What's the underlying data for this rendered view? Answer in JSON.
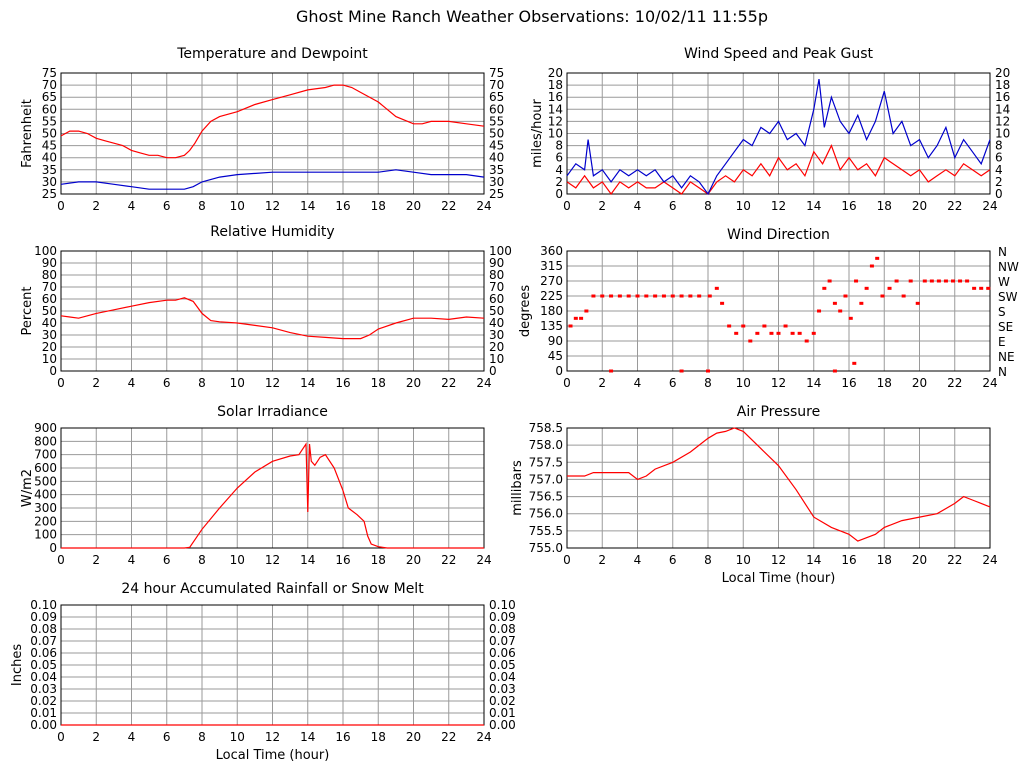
{
  "title": "Ghost Mine Ranch Weather Observations: 10/02/11 11:55p",
  "colors": {
    "primary": "#ff0000",
    "secondary": "#0000cc",
    "grid": "#9a9a9a"
  },
  "chart_data": [
    {
      "id": "temp",
      "type": "line",
      "title": "Temperature and Dewpoint",
      "xlabel": "",
      "ylabel": "Fahrenheit",
      "xlim": [
        0,
        24
      ],
      "ylim": [
        25,
        75
      ],
      "yticks": [
        25,
        30,
        35,
        40,
        45,
        50,
        55,
        60,
        65,
        70,
        75
      ],
      "right_axis": true,
      "series": [
        {
          "color": "red",
          "x": [
            0,
            0.5,
            1,
            1.5,
            2,
            2.5,
            3,
            3.5,
            4,
            4.5,
            5,
            5.5,
            6,
            6.5,
            7,
            7.3,
            7.6,
            8,
            8.5,
            9,
            10,
            11,
            12,
            13,
            14,
            15,
            15.5,
            16,
            16.5,
            17,
            18,
            19,
            20,
            20.5,
            21,
            22,
            23,
            24
          ],
          "y": [
            49,
            51,
            51,
            50,
            48,
            47,
            46,
            45,
            43,
            42,
            41,
            41,
            40,
            40,
            41,
            43,
            46,
            51,
            55,
            57,
            59,
            62,
            64,
            66,
            68,
            69,
            70,
            70,
            69,
            67,
            63,
            57,
            54,
            54,
            55,
            55,
            54,
            53
          ]
        },
        {
          "color": "blue",
          "x": [
            0,
            1,
            2,
            3,
            4,
            5,
            6,
            7,
            7.5,
            8,
            9,
            10,
            12,
            14,
            16,
            18,
            19,
            20,
            21,
            22,
            23,
            24
          ],
          "y": [
            29,
            30,
            30,
            29,
            28,
            27,
            27,
            27,
            28,
            30,
            32,
            33,
            34,
            34,
            34,
            34,
            35,
            34,
            33,
            33,
            33,
            32
          ]
        }
      ]
    },
    {
      "id": "wind",
      "type": "line",
      "title": "Wind Speed and Peak Gust",
      "xlabel": "",
      "ylabel": "miles/hour",
      "xlim": [
        0,
        24
      ],
      "ylim": [
        0,
        20
      ],
      "yticks": [
        0,
        2,
        4,
        6,
        8,
        10,
        12,
        14,
        16,
        18,
        20
      ],
      "right_axis": true,
      "series": [
        {
          "color": "red",
          "x": [
            0,
            0.5,
            1,
            1.5,
            2,
            2.5,
            3,
            3.5,
            4,
            4.5,
            5,
            5.5,
            6,
            6.5,
            7,
            7.5,
            8,
            8.5,
            9,
            9.5,
            10,
            10.5,
            11,
            11.5,
            12,
            12.5,
            13,
            13.5,
            14,
            14.5,
            15,
            15.5,
            16,
            16.5,
            17,
            17.5,
            18,
            18.5,
            19,
            19.5,
            20,
            20.5,
            21,
            21.5,
            22,
            22.5,
            23,
            23.5,
            24
          ],
          "y": [
            2,
            1,
            3,
            1,
            2,
            0,
            2,
            1,
            2,
            1,
            1,
            2,
            1,
            0,
            2,
            1,
            0,
            2,
            3,
            2,
            4,
            3,
            5,
            3,
            6,
            4,
            5,
            3,
            7,
            5,
            8,
            4,
            6,
            4,
            5,
            3,
            6,
            5,
            4,
            3,
            4,
            2,
            3,
            4,
            3,
            5,
            4,
            3,
            4
          ]
        },
        {
          "color": "blue",
          "x": [
            0,
            0.5,
            1,
            1.2,
            1.5,
            2,
            2.5,
            3,
            3.5,
            4,
            4.5,
            5,
            5.5,
            6,
            6.5,
            7,
            7.5,
            8,
            8.5,
            9,
            9.5,
            10,
            10.5,
            11,
            11.5,
            12,
            12.5,
            13,
            13.5,
            14,
            14.3,
            14.6,
            15,
            15.5,
            16,
            16.5,
            17,
            17.5,
            18,
            18.5,
            19,
            19.5,
            20,
            20.5,
            21,
            21.5,
            22,
            22.5,
            23,
            23.5,
            24
          ],
          "y": [
            3,
            5,
            4,
            9,
            3,
            4,
            2,
            4,
            3,
            4,
            3,
            4,
            2,
            3,
            1,
            3,
            2,
            0,
            3,
            5,
            7,
            9,
            8,
            11,
            10,
            12,
            9,
            10,
            8,
            14,
            19,
            11,
            16,
            12,
            10,
            13,
            9,
            12,
            17,
            10,
            12,
            8,
            9,
            6,
            8,
            11,
            6,
            9,
            7,
            5,
            9
          ]
        }
      ]
    },
    {
      "id": "humidity",
      "type": "line",
      "title": "Relative Humidity",
      "xlabel": "",
      "ylabel": "Percent",
      "xlim": [
        0,
        24
      ],
      "ylim": [
        0,
        100
      ],
      "yticks": [
        0,
        10,
        20,
        30,
        40,
        50,
        60,
        70,
        80,
        90,
        100
      ],
      "right_axis": true,
      "series": [
        {
          "color": "red",
          "x": [
            0,
            0.5,
            1,
            1.5,
            2,
            3,
            4,
            5,
            6,
            6.5,
            7,
            7.5,
            8,
            8.5,
            9,
            10,
            11,
            12,
            13,
            14,
            15,
            16,
            17,
            17.5,
            18,
            19,
            20,
            21,
            22,
            23,
            24
          ],
          "y": [
            46,
            45,
            44,
            46,
            48,
            51,
            54,
            57,
            59,
            59,
            61,
            58,
            48,
            42,
            41,
            40,
            38,
            36,
            32,
            29,
            28,
            27,
            27,
            30,
            35,
            40,
            44,
            44,
            43,
            45,
            44
          ]
        }
      ]
    },
    {
      "id": "winddir",
      "type": "scatter",
      "title": "Wind Direction",
      "xlabel": "",
      "ylabel": "degrees",
      "xlim": [
        0,
        24
      ],
      "ylim": [
        0,
        360
      ],
      "yticks": [
        0,
        45,
        90,
        135,
        180,
        225,
        270,
        315,
        360
      ],
      "right_labels": [
        "N",
        "NE",
        "E",
        "SE",
        "S",
        "SW",
        "W",
        "NW",
        "N"
      ],
      "series": [
        {
          "color": "red",
          "x": [
            0.2,
            0.5,
            0.8,
            1.1,
            1.5,
            2,
            2.5,
            3,
            3.5,
            4,
            4.5,
            5,
            5.5,
            6,
            6.5,
            7,
            7.5,
            8.1,
            8.5,
            8.8,
            9.2,
            9.6,
            10,
            10.4,
            10.8,
            11.2,
            11.6,
            12,
            12.4,
            12.8,
            13.2,
            13.6,
            14,
            14.3,
            14.6,
            14.9,
            15.2,
            15.5,
            15.8,
            16.1,
            16.4,
            16.7,
            17,
            17.3,
            17.6,
            17.9,
            18.3,
            18.7,
            19.1,
            19.5,
            19.9,
            20.3,
            20.7,
            21.1,
            21.5,
            21.9,
            22.3,
            22.7,
            23.1,
            23.5,
            23.9
          ],
          "y": [
            135,
            158,
            158,
            180,
            225,
            225,
            225,
            225,
            225,
            225,
            225,
            225,
            225,
            225,
            225,
            225,
            225,
            225,
            248,
            203,
            135,
            113,
            135,
            90,
            113,
            135,
            113,
            113,
            135,
            113,
            113,
            90,
            113,
            180,
            248,
            270,
            203,
            180,
            225,
            158,
            270,
            203,
            248,
            315,
            338,
            225,
            248,
            270,
            225,
            270,
            203,
            270,
            270,
            270,
            270,
            270,
            270,
            270,
            248,
            248,
            248
          ]
        },
        {
          "color": "red",
          "x": [
            2.5,
            6.5,
            8.0,
            15.2,
            16.3
          ],
          "y": [
            0,
            0,
            0,
            0,
            23
          ]
        }
      ]
    },
    {
      "id": "solar",
      "type": "line",
      "title": "Solar Irradiance",
      "xlabel": "",
      "ylabel": "W/m2",
      "xlim": [
        0,
        24
      ],
      "ylim": [
        0,
        900
      ],
      "yticks": [
        0,
        100,
        200,
        300,
        400,
        500,
        600,
        700,
        800,
        900
      ],
      "right_axis": false,
      "series": [
        {
          "color": "red",
          "x": [
            0,
            6,
            7,
            7.3,
            8,
            9,
            10,
            11,
            12,
            13,
            13.5,
            13.9,
            14.0,
            14.1,
            14.2,
            14.4,
            14.7,
            15,
            15.5,
            16,
            16.3,
            16.8,
            17.2,
            17.4,
            17.6,
            18,
            18.5,
            19,
            24
          ],
          "y": [
            0,
            0,
            0,
            5,
            140,
            300,
            450,
            570,
            650,
            690,
            700,
            780,
            270,
            780,
            650,
            620,
            680,
            700,
            600,
            430,
            300,
            250,
            200,
            90,
            30,
            10,
            0,
            0,
            0
          ]
        }
      ]
    },
    {
      "id": "pressure",
      "type": "line",
      "title": "Air Pressure",
      "xlabel": "Local Time (hour)",
      "ylabel": "millibars",
      "xlim": [
        0,
        24
      ],
      "ylim": [
        755.0,
        758.5
      ],
      "yticks": [
        755.0,
        755.5,
        756.0,
        756.5,
        757.0,
        757.5,
        758.0,
        758.5
      ],
      "ytick_labels": [
        "755.0",
        "755.5",
        "756.0",
        "756.5",
        "757.0",
        "757.5",
        "758.0",
        "758.5"
      ],
      "right_axis": false,
      "series": [
        {
          "color": "red",
          "x": [
            0,
            0.5,
            1,
            1.5,
            2,
            3,
            3.5,
            4,
            4.5,
            5,
            6,
            7,
            8,
            8.5,
            9,
            9.5,
            10,
            11,
            12,
            13,
            14,
            15,
            16,
            16.5,
            17,
            17.5,
            18,
            19,
            20,
            21,
            22,
            22.5,
            23,
            23.5,
            24
          ],
          "y": [
            757.1,
            757.1,
            757.1,
            757.2,
            757.2,
            757.2,
            757.2,
            757.0,
            757.1,
            757.3,
            757.5,
            757.8,
            758.2,
            758.35,
            758.4,
            758.5,
            758.4,
            757.9,
            757.4,
            756.7,
            755.9,
            755.6,
            755.4,
            755.2,
            755.3,
            755.4,
            755.6,
            755.8,
            755.9,
            756.0,
            756.3,
            756.5,
            756.4,
            756.3,
            756.2
          ]
        }
      ]
    },
    {
      "id": "rain",
      "type": "line",
      "title": "24 hour Accumulated Rainfall or Snow Melt",
      "xlabel": "Local Time (hour)",
      "ylabel": "Inches",
      "xlim": [
        0,
        24
      ],
      "ylim": [
        0,
        0.1
      ],
      "yticks": [
        0,
        0.01,
        0.02,
        0.03,
        0.04,
        0.05,
        0.06,
        0.07,
        0.08,
        0.09,
        0.1
      ],
      "ytick_labels": [
        "0.00",
        "0.01",
        "0.02",
        "0.03",
        "0.04",
        "0.05",
        "0.06",
        "0.07",
        "0.08",
        "0.09",
        "0.10"
      ],
      "right_axis": true,
      "series": [
        {
          "color": "red",
          "x": [
            0,
            24
          ],
          "y": [
            0,
            0
          ]
        }
      ]
    }
  ]
}
